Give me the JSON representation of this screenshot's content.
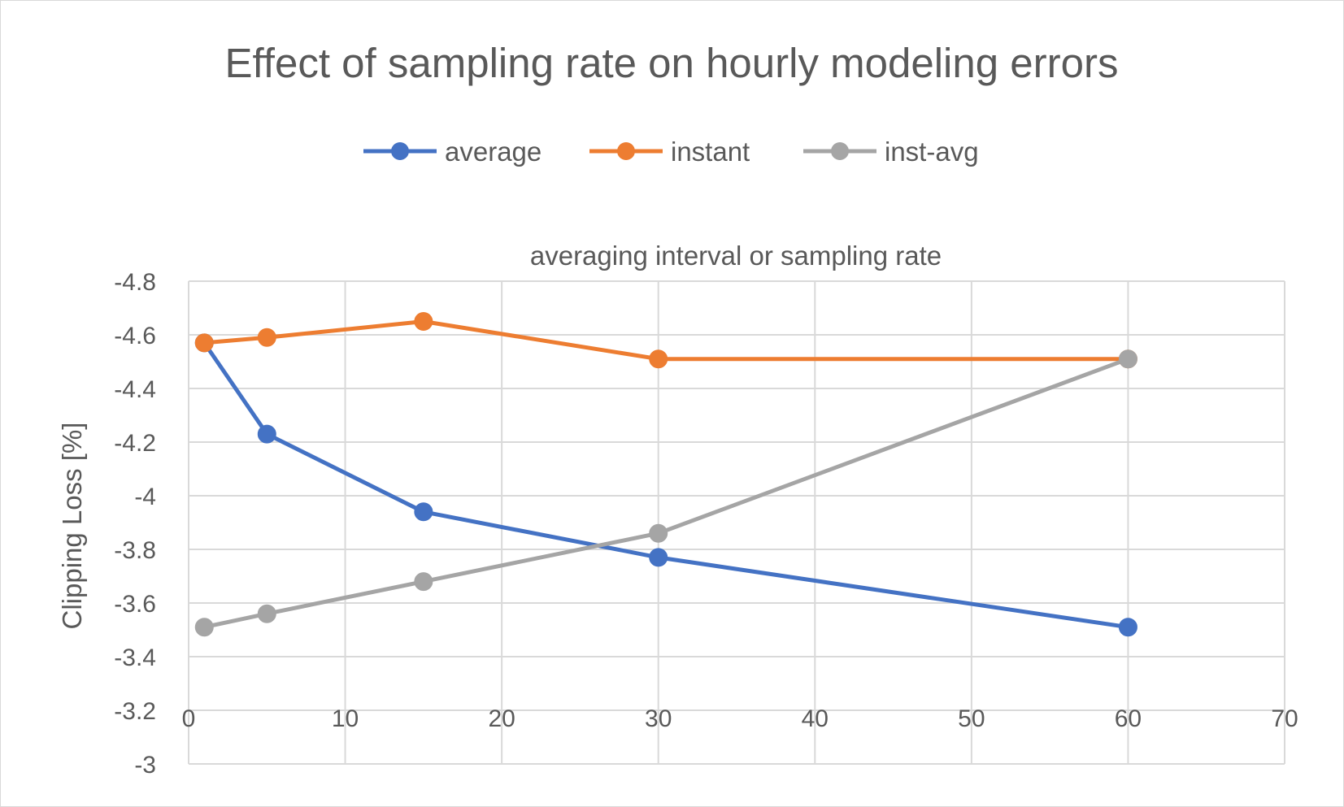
{
  "chart_data": {
    "type": "line",
    "title": "Effect of sampling rate on hourly modeling errors",
    "xlabel": "averaging interval or sampling rate",
    "ylabel": "Clipping Loss [%]",
    "xlim": [
      0,
      70
    ],
    "ylim": [
      -3,
      -4.8
    ],
    "y_axis_reversed": true,
    "x_ticks": [
      "0",
      "10",
      "20",
      "30",
      "40",
      "50",
      "60",
      "70"
    ],
    "y_ticks": [
      "-4.8",
      "-4.6",
      "-4.4",
      "-4.2",
      "-4",
      "-3.8",
      "-3.6",
      "-3.4",
      "-3.2",
      "-3"
    ],
    "x_axis_position": "top",
    "grid": true,
    "legend_position": "top",
    "series": [
      {
        "name": "average",
        "color": "#4472C4",
        "x": [
          1,
          5,
          15,
          30,
          60
        ],
        "y": [
          -4.57,
          -4.23,
          -3.94,
          -3.77,
          -3.51
        ]
      },
      {
        "name": "instant",
        "color": "#ED7D31",
        "x": [
          1,
          5,
          15,
          30,
          60
        ],
        "y": [
          -4.57,
          -4.59,
          -4.65,
          -4.51,
          -4.51
        ]
      },
      {
        "name": "inst-avg",
        "color": "#A5A5A5",
        "x": [
          1,
          5,
          15,
          30,
          60
        ],
        "y": [
          -3.51,
          -3.56,
          -3.68,
          -3.86,
          -4.51
        ]
      }
    ]
  }
}
